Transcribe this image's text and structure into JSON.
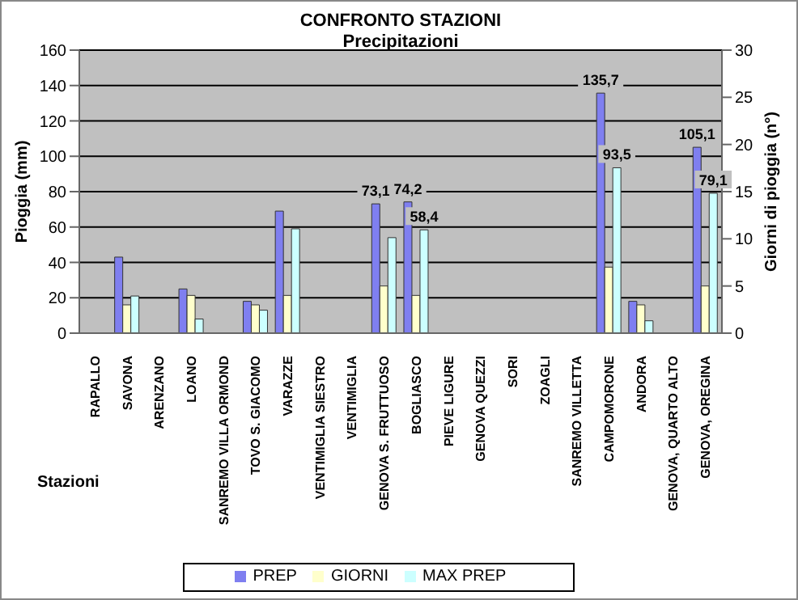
{
  "chart_data": {
    "type": "bar",
    "title": "CONFRONTO STAZIONI",
    "subtitle": "Precipitazioni",
    "xlabel": "Stazioni",
    "ylabel": "Pioggia (mm)",
    "y2label": "Giorni di pioggia (n°)",
    "categories": [
      "RAPALLO",
      "SAVONA",
      "ARENZANO",
      "LOANO",
      "SANREMO VILLA ORMOND",
      "TOVO S. GIACOMO",
      "VARAZZE",
      "VENTIMIGLIA SIESTRO",
      "VENTIMIGLIA",
      "GENOVA S. FRUTTUOSO",
      "BOGLIASCO",
      "PIEVE LIGURE",
      "GENOVA QUEZZI",
      "SORI",
      "ZOAGLI",
      "SANREMO VILLETTA",
      "CAMPOMORONE",
      "ANDORA",
      "GENOVA, QUARTO ALTO",
      "GENOVA, OREGINA"
    ],
    "series": [
      {
        "name": "PREP",
        "color": "#7f7ff0",
        "values": [
          null,
          43,
          null,
          25,
          null,
          18,
          69,
          null,
          null,
          73.1,
          74.2,
          null,
          null,
          null,
          null,
          null,
          135.7,
          18,
          null,
          105.1
        ],
        "value_labels": [
          null,
          null,
          null,
          null,
          null,
          null,
          null,
          null,
          null,
          "73,1",
          "74,2",
          null,
          null,
          null,
          null,
          null,
          "135,7",
          null,
          null,
          "105,1"
        ]
      },
      {
        "name": "GIORNI",
        "color": "#ffffcc",
        "axis": "y2",
        "values": [
          null,
          3,
          null,
          4,
          null,
          3,
          4,
          null,
          null,
          5,
          4,
          null,
          null,
          null,
          null,
          null,
          7,
          3,
          null,
          5
        ]
      },
      {
        "name": "MAX PREP",
        "color": "#ccffff",
        "values": [
          null,
          21,
          null,
          8,
          null,
          13,
          59,
          null,
          null,
          54,
          58.4,
          null,
          null,
          null,
          null,
          null,
          93.5,
          7,
          null,
          79.1
        ],
        "value_labels": [
          null,
          null,
          null,
          null,
          null,
          null,
          null,
          null,
          null,
          null,
          "58,4",
          null,
          null,
          null,
          null,
          null,
          "93,5",
          null,
          null,
          "79,1"
        ]
      }
    ],
    "ylim": [
      0,
      160
    ],
    "yticks": [
      0,
      20,
      40,
      60,
      80,
      100,
      120,
      140,
      160
    ],
    "y2lim": [
      0,
      30
    ],
    "y2ticks": [
      0,
      5,
      10,
      15,
      20,
      25,
      30
    ],
    "grid": "y",
    "legend": "bottom"
  }
}
